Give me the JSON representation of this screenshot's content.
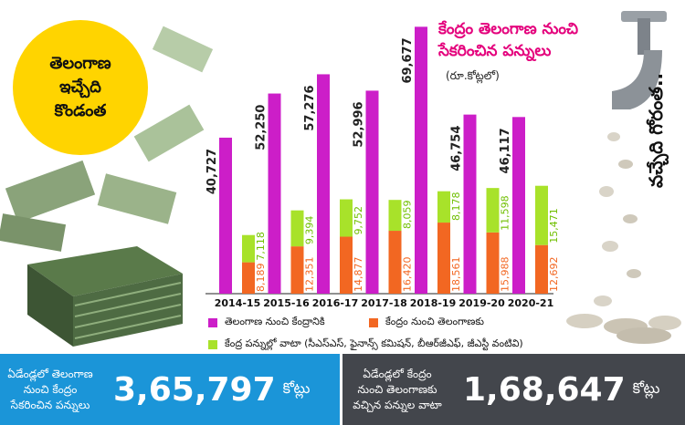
{
  "badge": {
    "lines": [
      "తెలంగాణ",
      "ఇచ్చేది",
      "కొండంత"
    ]
  },
  "tagline": "వచ్చేది గోరంత..",
  "colors": {
    "pink": "#cc1ec8",
    "orange": "#f26722",
    "green": "#a8e22a",
    "footer_left": "#1b95d8",
    "footer_right": "#43464c",
    "title": "#e4007c"
  },
  "chart_data": {
    "type": "bar",
    "title": "కేంద్రం తెలంగాణ నుంచి సేకరించిన పన్నులు",
    "unit": "(రూ.కోట్లలో)",
    "categories": [
      "2014-15",
      "2015-16",
      "2016-17",
      "2017-18",
      "2018-19",
      "2019-20",
      "2020-21"
    ],
    "series": [
      {
        "name": "తెలంగాణ నుంచి కేంద్రానికి",
        "color": "#cc1ec8",
        "values": [
          40727,
          52250,
          57276,
          52996,
          69677,
          46754,
          46117
        ],
        "labels": [
          "40,727",
          "52,250",
          "57,276",
          "52,996",
          "69,677",
          "46,754",
          "46,117"
        ]
      },
      {
        "name": "కేంద్రం నుంచి తెలంగాణకు",
        "color": "#f26722",
        "values": [
          8189,
          12351,
          14877,
          16420,
          18561,
          15988,
          12692
        ],
        "labels": [
          "8,189",
          "12,351",
          "14,877",
          "16,420",
          "18,561",
          "15,988",
          "12,692"
        ]
      },
      {
        "name": "కేంద్ర పన్నుల్లో వాటా (సీఎస్‌ఎస్, ఫైనాన్స్ కమిషన్, బీఆర్‌జీఎఫ్, జీఎస్టీ వంటివి)",
        "color": "#a8e22a",
        "values": [
          7118,
          9394,
          9752,
          8059,
          8178,
          11598,
          15471
        ],
        "labels": [
          "7,118",
          "9,394",
          "9,752",
          "8,059",
          "8,178",
          "11,598",
          "15,471"
        ]
      }
    ]
  },
  "footer": {
    "left": {
      "caption": [
        "ఏడేండ్లలో తెలంగాణ",
        "నుంచి కేంద్రం",
        "సేకరించిన పన్నులు"
      ],
      "value": "3,65,797",
      "unit": "కోట్లు"
    },
    "right": {
      "caption": [
        "ఏడేండ్లలో కేంద్రం",
        "నుంచి తెలంగాణకు",
        "వచ్చిన పన్నుల వాటా"
      ],
      "value": "1,68,647",
      "unit": "కోట్లు"
    }
  }
}
